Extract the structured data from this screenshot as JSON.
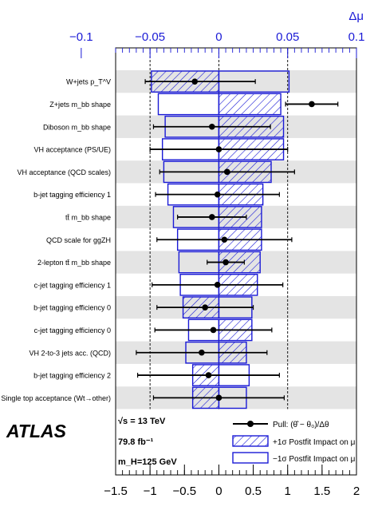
{
  "chart_data": {
    "type": "ranking",
    "top_axis_label": "Δμ",
    "top_ticks": [
      "−0.1",
      "−0.05",
      "0",
      "0.05",
      "0.1"
    ],
    "top_tick_values": [
      -0.1,
      -0.05,
      0,
      0.05,
      0.1
    ],
    "top_range": [
      -0.1,
      0.1
    ],
    "bottom_ticks": [
      "−1.5",
      "−1",
      "−0.5",
      "0",
      "0.5",
      "1",
      "1.5",
      "2"
    ],
    "bottom_tick_values": [
      -1.5,
      -1,
      -0.5,
      0,
      0.5,
      1,
      1.5,
      2
    ],
    "bottom_range": [
      -1.5,
      2
    ],
    "nuisance_parameters": [
      {
        "label": "W+jets p_T^V",
        "pull": -0.35,
        "err_lo": 0.72,
        "err_hi": 0.88,
        "impact_plus": -0.049,
        "impact_minus": 0.051
      },
      {
        "label": "Z+jets m_bb shape",
        "pull": 1.35,
        "err_lo": 0.38,
        "err_hi": 0.38,
        "impact_plus": 0.045,
        "impact_minus": -0.044
      },
      {
        "label": "Diboson m_bb shape",
        "pull": -0.1,
        "err_lo": 0.85,
        "err_hi": 0.85,
        "impact_plus": 0.047,
        "impact_minus": -0.039
      },
      {
        "label": "VH acceptance (PS/UE)",
        "pull": 0.0,
        "err_lo": 1.0,
        "err_hi": 1.0,
        "impact_plus": 0.047,
        "impact_minus": -0.041
      },
      {
        "label": "VH acceptance (QCD scales)",
        "pull": 0.12,
        "err_lo": 0.98,
        "err_hi": 0.98,
        "impact_plus": 0.038,
        "impact_minus": -0.04
      },
      {
        "label": "b-jet tagging efficiency 1",
        "pull": -0.02,
        "err_lo": 0.9,
        "err_hi": 0.9,
        "impact_plus": 0.032,
        "impact_minus": -0.037
      },
      {
        "label": "tt̄ m_bb shape",
        "pull": -0.1,
        "err_lo": 0.5,
        "err_hi": 0.5,
        "impact_plus": 0.031,
        "impact_minus": -0.033
      },
      {
        "label": "QCD scale for ggZH",
        "pull": 0.08,
        "err_lo": 0.98,
        "err_hi": 0.98,
        "impact_plus": 0.031,
        "impact_minus": -0.03
      },
      {
        "label": "2-lepton tt̄ m_bb shape",
        "pull": 0.1,
        "err_lo": 0.27,
        "err_hi": 0.27,
        "impact_plus": 0.03,
        "impact_minus": -0.029
      },
      {
        "label": "c-jet tagging efficiency 1",
        "pull": -0.02,
        "err_lo": 0.95,
        "err_hi": 0.95,
        "impact_plus": 0.028,
        "impact_minus": -0.028
      },
      {
        "label": "b-jet tagging efficiency 0",
        "pull": -0.2,
        "err_lo": 0.7,
        "err_hi": 0.7,
        "impact_plus": -0.026,
        "impact_minus": 0.024
      },
      {
        "label": "c-jet tagging efficiency 0",
        "pull": -0.08,
        "err_lo": 0.85,
        "err_hi": 0.85,
        "impact_plus": 0.024,
        "impact_minus": -0.022
      },
      {
        "label": "VH 2-to-3 jets acc. (QCD)",
        "pull": -0.25,
        "err_lo": 0.95,
        "err_hi": 0.95,
        "impact_plus": 0.02,
        "impact_minus": -0.024
      },
      {
        "label": "b-jet tagging efficiency 2",
        "pull": -0.15,
        "err_lo": 1.03,
        "err_hi": 1.03,
        "impact_plus": -0.019,
        "impact_minus": 0.022
      },
      {
        "label": "Single top acceptance (Wt→other)",
        "pull": 0.0,
        "err_lo": 0.95,
        "err_hi": 0.95,
        "impact_plus": -0.019,
        "impact_minus": 0.02
      }
    ],
    "reference_lines": [
      -1,
      0,
      1
    ],
    "grid": "alternating row shading",
    "legend_placement": "bottom"
  },
  "experiment_label": "ATLAS",
  "energy_label": "√s = 13 TeV",
  "lumi_label": "79.8 fb⁻¹",
  "mass_label": "m_H=125 GeV",
  "legend": {
    "pull": "Pull: (θ̂ − θ₀)/Δθ",
    "plus": "+1σ Postfit Impact on μ",
    "minus": "−1σ Postfit Impact on μ"
  },
  "colors": {
    "impact": "#1a1ad6",
    "pull": "#000000",
    "band": "#e4e4e4"
  }
}
